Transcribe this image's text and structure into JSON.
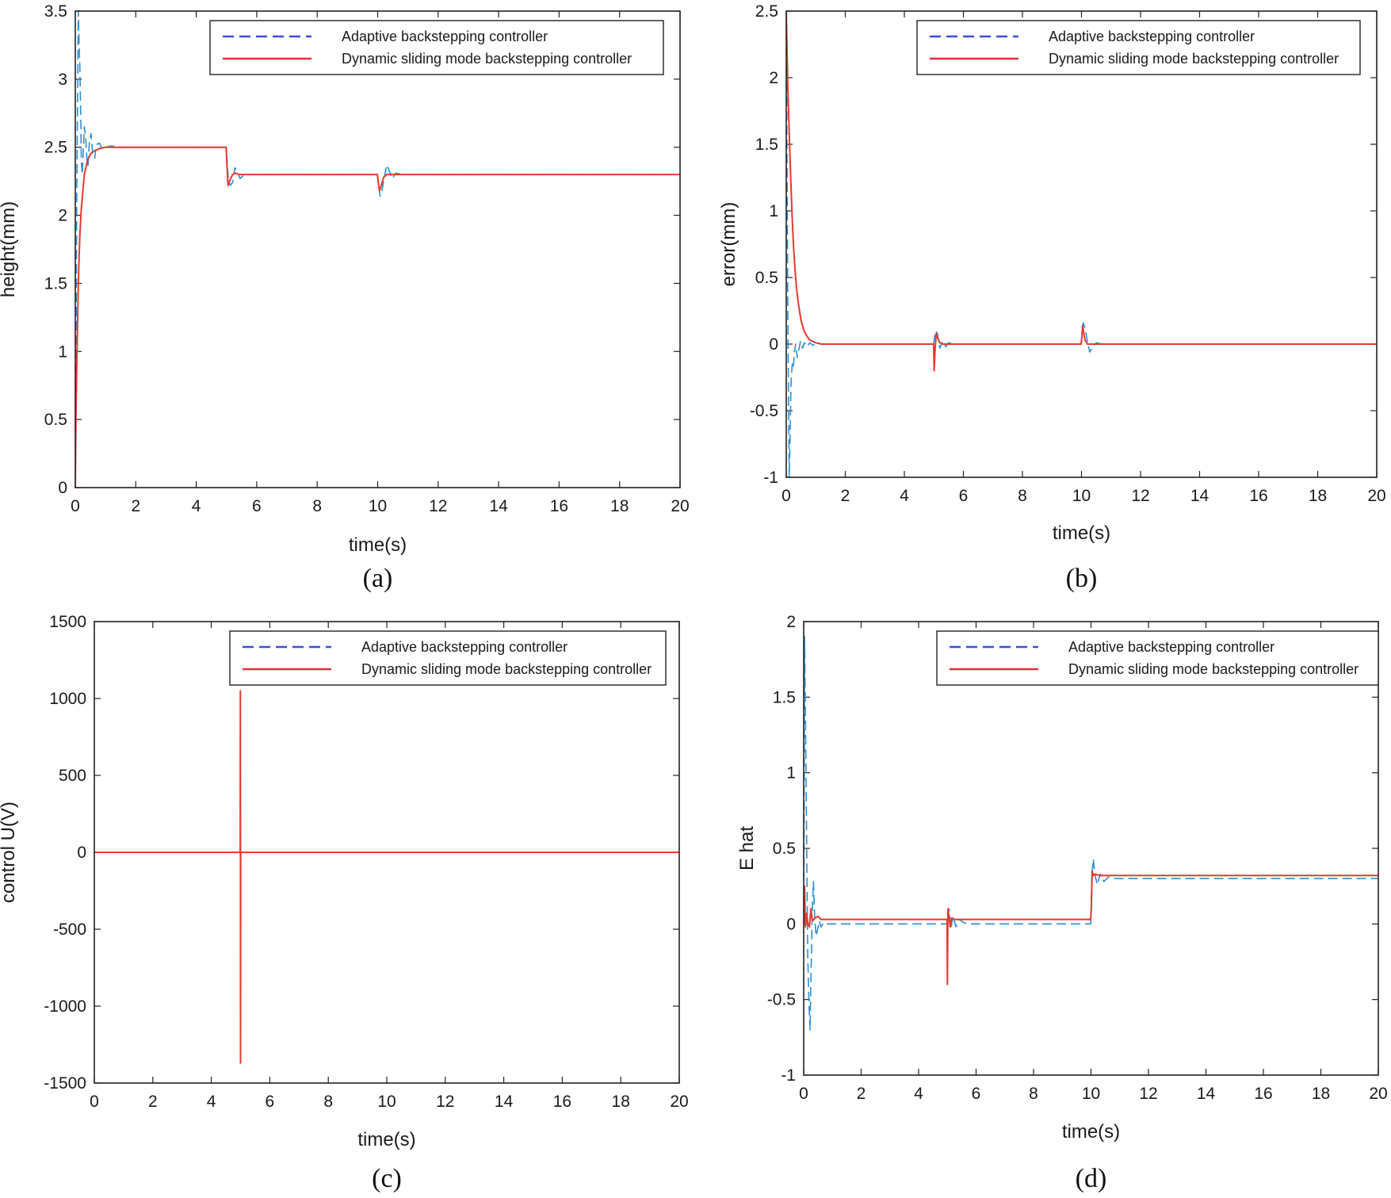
{
  "colors": {
    "adaptive": "#2c8fd6",
    "adaptive_legend": "#3d4fd8",
    "dynamic": "#e53a2f",
    "dynamic_legend": "#e0303a"
  },
  "chart_data": [
    {
      "id": "a",
      "type": "line",
      "caption": "(a)",
      "xlabel": "time(s)",
      "ylabel": "height(mm)",
      "xlim": [
        0,
        20
      ],
      "ylim": [
        0,
        3.5
      ],
      "xticks": [
        "0",
        "2",
        "4",
        "6",
        "8",
        "10",
        "12",
        "14",
        "16",
        "18",
        "20"
      ],
      "yticks": [
        "0",
        "0.5",
        "1",
        "1.5",
        "2",
        "2.5",
        "3",
        "3.5"
      ],
      "legend_position": "top-right",
      "series": [
        {
          "name": "Adaptive backstepping controller",
          "style": "dashed",
          "x": [
            0,
            0.02,
            0.05,
            0.08,
            0.1,
            0.12,
            0.15,
            0.18,
            0.2,
            0.23,
            0.26,
            0.3,
            0.34,
            0.38,
            0.42,
            0.47,
            0.52,
            0.58,
            0.64,
            0.7,
            0.8,
            0.9,
            1.0,
            1.2,
            1.5,
            2,
            3,
            4,
            4.99,
            5.02,
            5.06,
            5.12,
            5.2,
            5.28,
            5.36,
            5.45,
            5.55,
            5.7,
            6,
            8,
            9.99,
            10.03,
            10.08,
            10.14,
            10.22,
            10.3,
            10.38,
            10.48,
            10.6,
            10.8,
            12,
            14,
            16,
            18,
            20
          ],
          "y": [
            0,
            0.8,
            2.2,
            3.0,
            3.5,
            3.3,
            3.1,
            2.7,
            2.4,
            2.3,
            2.45,
            2.65,
            2.58,
            2.42,
            2.36,
            2.55,
            2.6,
            2.45,
            2.42,
            2.52,
            2.53,
            2.48,
            2.5,
            2.51,
            2.5,
            2.5,
            2.5,
            2.5,
            2.5,
            2.4,
            2.27,
            2.22,
            2.24,
            2.35,
            2.32,
            2.27,
            2.29,
            2.3,
            2.3,
            2.3,
            2.3,
            2.22,
            2.14,
            2.18,
            2.28,
            2.37,
            2.33,
            2.27,
            2.31,
            2.3,
            2.3,
            2.3,
            2.3,
            2.3,
            2.3
          ]
        },
        {
          "name": "Dynamic sliding mode backstepping controller",
          "style": "solid",
          "x": [
            0,
            0.02,
            0.05,
            0.1,
            0.15,
            0.2,
            0.3,
            0.4,
            0.5,
            0.6,
            0.7,
            0.8,
            1.0,
            1.2,
            1.5,
            2,
            3,
            4,
            4.99,
            5.01,
            5.05,
            5.1,
            5.2,
            5.3,
            5.4,
            5.6,
            6,
            8,
            9.99,
            10.02,
            10.06,
            10.12,
            10.2,
            10.3,
            10.4,
            10.6,
            12,
            14,
            16,
            18,
            20
          ],
          "y": [
            0,
            0.5,
            0.9,
            1.5,
            1.85,
            2.05,
            2.3,
            2.4,
            2.45,
            2.47,
            2.48,
            2.49,
            2.5,
            2.5,
            2.5,
            2.5,
            2.5,
            2.5,
            2.5,
            2.4,
            2.22,
            2.25,
            2.3,
            2.31,
            2.3,
            2.3,
            2.3,
            2.3,
            2.3,
            2.24,
            2.18,
            2.22,
            2.28,
            2.3,
            2.3,
            2.3,
            2.3,
            2.3,
            2.3,
            2.3,
            2.3
          ]
        }
      ]
    },
    {
      "id": "b",
      "type": "line",
      "caption": "(b)",
      "xlabel": "time(s)",
      "ylabel": "error(mm)",
      "xlim": [
        0,
        20
      ],
      "ylim": [
        -1,
        2.5
      ],
      "xticks": [
        "0",
        "2",
        "4",
        "6",
        "8",
        "10",
        "12",
        "14",
        "16",
        "18",
        "20"
      ],
      "yticks": [
        "-1",
        "-0.5",
        "0",
        "0.5",
        "1",
        "1.5",
        "2",
        "2.5"
      ],
      "legend_position": "top-right",
      "series": [
        {
          "name": "Adaptive backstepping controller",
          "style": "dashed",
          "x": [
            0,
            0.02,
            0.05,
            0.08,
            0.1,
            0.13,
            0.16,
            0.2,
            0.24,
            0.28,
            0.32,
            0.37,
            0.42,
            0.48,
            0.55,
            0.62,
            0.7,
            0.8,
            0.9,
            1.0,
            1.2,
            1.5,
            2,
            3,
            4,
            4.99,
            5.02,
            5.06,
            5.12,
            5.2,
            5.3,
            5.4,
            5.5,
            5.7,
            6,
            8,
            9.99,
            10.02,
            10.06,
            10.12,
            10.2,
            10.28,
            10.36,
            10.5,
            10.7,
            12,
            14,
            16,
            18,
            20
          ],
          "y": [
            2.5,
            1.7,
            0.3,
            -0.5,
            -1.0,
            -0.7,
            -0.3,
            -0.15,
            -0.18,
            -0.05,
            0.0,
            -0.1,
            -0.05,
            0.02,
            -0.03,
            0.01,
            -0.02,
            0.01,
            -0.01,
            0.0,
            0.0,
            0.0,
            0.0,
            0.0,
            0.0,
            0.0,
            0.05,
            0.1,
            0.08,
            -0.03,
            0.02,
            -0.02,
            0.01,
            0.0,
            0.0,
            0.0,
            0.0,
            0.08,
            0.16,
            0.12,
            0.02,
            -0.06,
            -0.03,
            0.01,
            0.0,
            0.0,
            0.0,
            0.0,
            0.0,
            0.0
          ]
        },
        {
          "name": "Dynamic sliding mode backstepping controller",
          "style": "solid",
          "x": [
            0,
            0.05,
            0.1,
            0.15,
            0.2,
            0.25,
            0.3,
            0.35,
            0.4,
            0.5,
            0.6,
            0.7,
            0.8,
            1.0,
            1.2,
            1.5,
            2,
            3,
            4,
            4.99,
            5.01,
            5.04,
            5.08,
            5.12,
            5.2,
            5.3,
            5.5,
            6,
            8,
            9.99,
            10.01,
            10.04,
            10.08,
            10.12,
            10.2,
            10.3,
            10.5,
            12,
            14,
            16,
            18,
            20
          ],
          "y": [
            2.5,
            1.95,
            1.6,
            1.25,
            0.95,
            0.72,
            0.55,
            0.42,
            0.32,
            0.18,
            0.1,
            0.06,
            0.03,
            0.01,
            0.0,
            0.0,
            0.0,
            0.0,
            0.0,
            0.0,
            -0.2,
            -0.05,
            0.08,
            0.05,
            0.01,
            0.0,
            0.0,
            0.0,
            0.0,
            0.0,
            0.05,
            0.14,
            0.08,
            0.03,
            0.0,
            0.0,
            0.0,
            0.0,
            0.0,
            0.0,
            0.0,
            0.0
          ]
        }
      ]
    },
    {
      "id": "c",
      "type": "line",
      "caption": "(c)",
      "xlabel": "time(s)",
      "ylabel": "control U(V)",
      "xlim": [
        0,
        20
      ],
      "ylim": [
        -1500,
        1500
      ],
      "xticks": [
        "0",
        "2",
        "4",
        "6",
        "8",
        "10",
        "12",
        "14",
        "16",
        "18",
        "20"
      ],
      "yticks": [
        "-1500",
        "-1000",
        "-500",
        "0",
        "500",
        "1000",
        "1500"
      ],
      "legend_position": "top-right",
      "series": [
        {
          "name": "Adaptive backstepping controller",
          "style": "dashed",
          "x": [
            0,
            5,
            10,
            20
          ],
          "y": [
            0,
            0,
            0,
            0
          ]
        },
        {
          "name": "Dynamic sliding mode backstepping controller",
          "style": "solid",
          "x": [
            0,
            4.99,
            4.995,
            5.0,
            5.005,
            5.01,
            20
          ],
          "y": [
            0,
            0,
            1050,
            -1370,
            0,
            0,
            0
          ]
        }
      ]
    },
    {
      "id": "d",
      "type": "line",
      "caption": "(d)",
      "xlabel": "time(s)",
      "ylabel": "E hat",
      "xlim": [
        0,
        20
      ],
      "ylim": [
        -1,
        2
      ],
      "xticks": [
        "0",
        "2",
        "4",
        "6",
        "8",
        "10",
        "12",
        "14",
        "16",
        "18",
        "20"
      ],
      "yticks": [
        "-1",
        "-0.5",
        "0",
        "0.5",
        "1",
        "1.5",
        "2"
      ],
      "legend_position": "top-right",
      "series": [
        {
          "name": "Adaptive backstepping controller",
          "style": "dashed",
          "x": [
            0,
            0.03,
            0.06,
            0.1,
            0.14,
            0.18,
            0.22,
            0.26,
            0.3,
            0.34,
            0.38,
            0.43,
            0.48,
            0.54,
            0.6,
            0.7,
            0.8,
            0.9,
            1.0,
            1.2,
            1.5,
            2,
            3,
            4,
            4.99,
            5.02,
            5.06,
            5.12,
            5.2,
            5.3,
            5.42,
            5.55,
            5.7,
            6,
            8,
            9.99,
            10.03,
            10.08,
            10.14,
            10.22,
            10.32,
            10.45,
            10.6,
            10.8,
            11,
            12,
            14,
            16,
            18,
            20
          ],
          "y": [
            0,
            1.9,
            1.4,
            0.6,
            -0.2,
            -0.5,
            -0.7,
            -0.3,
            0.1,
            0.28,
            0.05,
            -0.08,
            -0.04,
            0.02,
            -0.02,
            0.01,
            0.0,
            0.0,
            0.0,
            0.0,
            0.0,
            0.0,
            0.0,
            0.0,
            0.0,
            0.06,
            0.1,
            -0.03,
            0.05,
            -0.02,
            0.03,
            0.01,
            0.0,
            0.0,
            0.0,
            0.0,
            0.32,
            0.43,
            0.32,
            0.26,
            0.33,
            0.28,
            0.31,
            0.3,
            0.3,
            0.3,
            0.3,
            0.3,
            0.3,
            0.3
          ]
        },
        {
          "name": "Dynamic sliding mode backstepping controller",
          "style": "solid",
          "x": [
            0,
            0.03,
            0.06,
            0.1,
            0.15,
            0.2,
            0.25,
            0.3,
            0.4,
            0.5,
            0.6,
            0.8,
            1.0,
            1.5,
            2,
            3,
            4,
            4.99,
            5.0,
            5.02,
            5.05,
            5.1,
            5.15,
            5.25,
            5.4,
            6,
            8,
            9.99,
            10.01,
            10.04,
            10.08,
            10.15,
            10.3,
            10.5,
            12,
            14,
            16,
            18,
            20
          ],
          "y": [
            0,
            0.25,
            -0.02,
            0.07,
            0.0,
            -0.02,
            0.1,
            0.02,
            0.04,
            0.05,
            0.03,
            0.03,
            0.03,
            0.03,
            0.03,
            0.03,
            0.03,
            0.03,
            -0.4,
            0.1,
            0.06,
            -0.02,
            0.04,
            0.03,
            0.03,
            0.03,
            0.03,
            0.03,
            0.1,
            0.35,
            0.32,
            0.33,
            0.32,
            0.32,
            0.32,
            0.32,
            0.32,
            0.32,
            0.32
          ]
        }
      ]
    }
  ]
}
